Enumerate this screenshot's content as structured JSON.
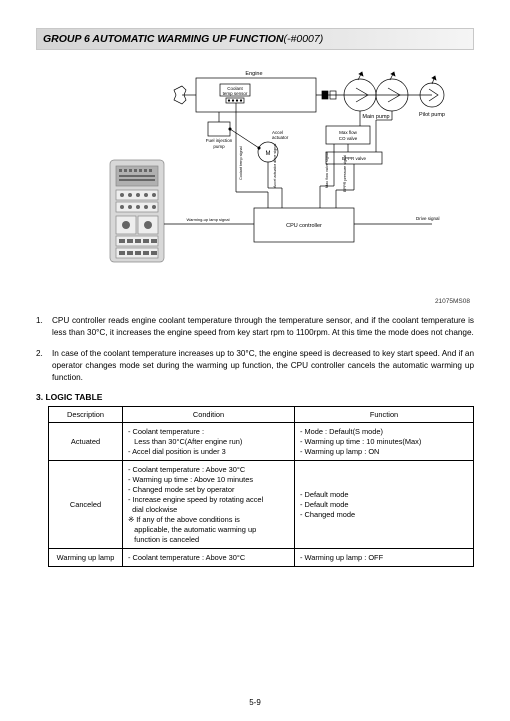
{
  "header": {
    "title": "GROUP  6  AUTOMATIC WARMING UP FUNCTION",
    "code": "(-#0007)"
  },
  "diagram": {
    "labels": {
      "engine": "Engine",
      "coolant_sensor": "Coolant\ntemp sensor",
      "fuel_pump": "Fuel injection\npump",
      "accel_act": "Accel\nactuator",
      "main_pump": "Main pump",
      "pilot_pump": "Pilot pump",
      "max_flow": "Max flow\nCO valve",
      "eppr": "EPPR valve",
      "cpu": "CPU controller",
      "drive_sig": "Drive signal",
      "warming_sig": "Warming-up lamp signal",
      "accel_drive": "Accel actuator drive signal",
      "coolant_sig": "Engine coolant temperature signal",
      "maxflow_sig": "Max flow CO valve signal",
      "eppr_sig": "EPPR pressure signal"
    },
    "figure_id": "21075MS08",
    "colors": {
      "line": "#000000",
      "screen_bg": "#c0c0c0",
      "device_body": "#d8d8d8",
      "device_border": "#888888"
    }
  },
  "paragraphs": [
    {
      "num": "1.",
      "text": "CPU controller reads engine coolant temperature through the temperature sensor, and if the coolant temperature is less than 30°C, it increases the engine speed from key start rpm to 1100rpm.   At this time the mode does not change."
    },
    {
      "num": "2.",
      "text": "In case of the coolant temperature increases up to 30°C, the engine speed is decreased to key start speed.  And if an operator changes mode set during the warming up function, the CPU controller cancels the automatic warming up function."
    }
  ],
  "logic_table": {
    "heading": "3. LOGIC  TABLE",
    "headers": [
      "Description",
      "Condition",
      "Function"
    ],
    "rows": [
      {
        "desc": "Actuated",
        "cond": [
          "- Coolant temperature :",
          "   Less than 30°C(After engine run)",
          "- Accel dial position is under 3"
        ],
        "func": [
          "- Mode : Default(S mode)",
          "- Warming up time : 10 minutes(Max)",
          "- Warming up lamp : ON"
        ]
      },
      {
        "desc": "Canceled",
        "cond": [
          "- Coolant temperature : Above 30°C",
          "- Warming up time : Above 10 minutes",
          "- Changed mode set by operator",
          "- Increase engine speed by rotating accel",
          "  dial clockwise",
          "※ If any of the above conditions is",
          "   applicable, the automatic warming up",
          "   function is canceled"
        ],
        "func": [
          "- Default mode",
          "- Default mode",
          "- Changed mode"
        ]
      },
      {
        "desc": "Warming up lamp",
        "cond": [
          "- Coolant temperature : Above 30°C"
        ],
        "func": [
          "- Warming up lamp : OFF"
        ]
      }
    ]
  },
  "page": "5-9"
}
